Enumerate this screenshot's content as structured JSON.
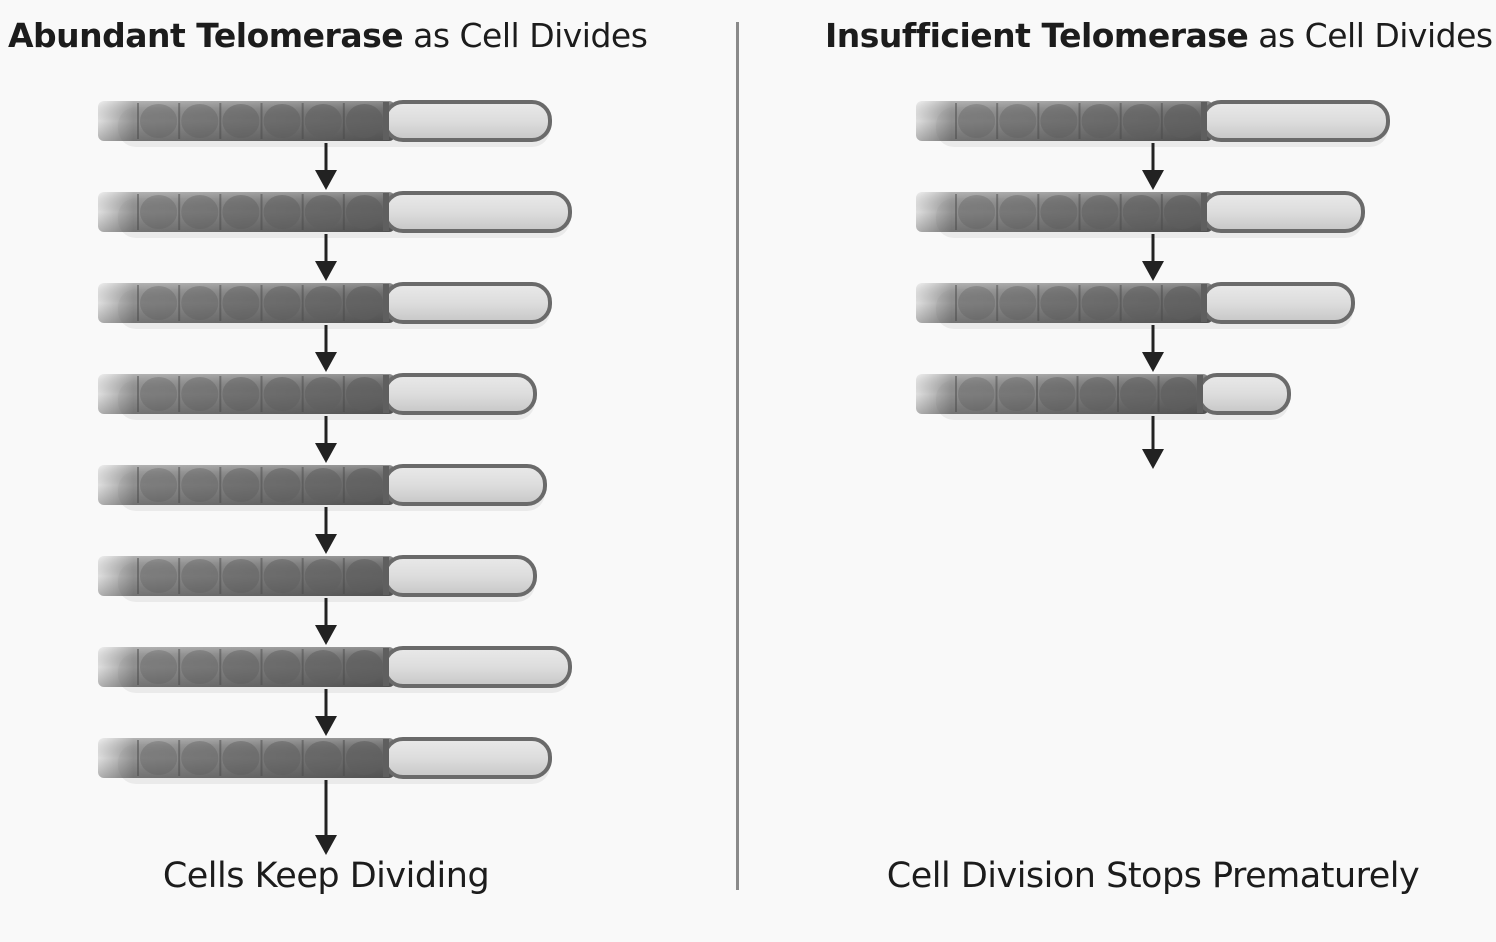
{
  "left_panel": {
    "title_bold": "Abundant Telomerase",
    "title_rest": " as Cell Divides",
    "caption": "Cells Keep Dividing",
    "chromosome_count": 8,
    "telomere_lengths": [
      165,
      185,
      165,
      150,
      160,
      150,
      185,
      165
    ]
  },
  "right_panel": {
    "title_bold": "Insufficient Telomerase",
    "title_rest": " as Cell Divides",
    "caption": "Cell Division Stops Prematurely",
    "chromosome_count": 4,
    "telomere_lengths": [
      185,
      160,
      150,
      90
    ]
  },
  "colors": {
    "background": "#f9f9f9",
    "chromosome_body": "#6f6f6f",
    "telomere": "#d8d8d8",
    "outline": "#555555",
    "arrow": "#222222",
    "divider": "#8a8a8a"
  }
}
